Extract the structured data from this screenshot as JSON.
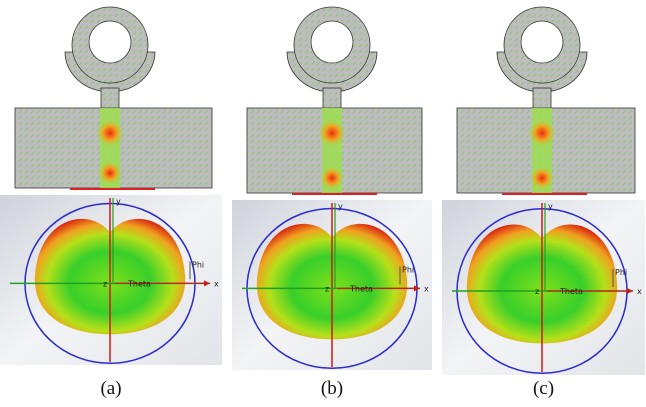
{
  "panels": [
    {
      "caption": "(a)",
      "labels": {
        "phi": "Phi",
        "theta": "Theta",
        "x": "x",
        "y": "y",
        "z": "z"
      }
    },
    {
      "caption": "(b)",
      "labels": {
        "phi": "Phi",
        "theta": "Theta",
        "x": "x",
        "y": "y",
        "z": "z"
      }
    },
    {
      "caption": "(c)",
      "labels": {
        "phi": "Phi",
        "theta": "Theta",
        "x": "x",
        "y": "y",
        "z": "z"
      }
    }
  ]
}
